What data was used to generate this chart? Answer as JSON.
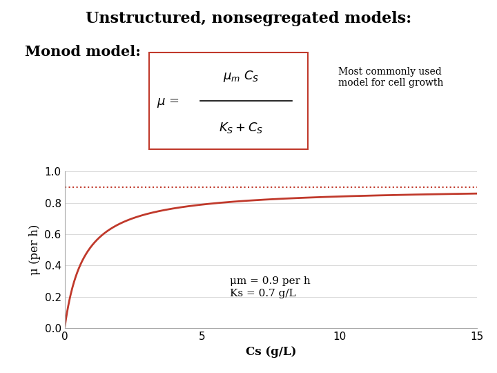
{
  "title": "Unstructured, nonsegregated models:",
  "subtitle": "Monod model:",
  "mu_m": 0.9,
  "Ks": 0.7,
  "cs_max": 15,
  "xlabel": "Cs (g/L)",
  "ylabel": "μ (per h)",
  "yticks": [
    0,
    0.2,
    0.4,
    0.6,
    0.8,
    1
  ],
  "xticks": [
    0,
    5,
    10,
    15
  ],
  "curve_color": "#c0392b",
  "dashed_color": "#c0392b",
  "box_color": "#c0392b",
  "annotation_line1": "μm = 0.9 per h",
  "annotation_line2": "Ks = 0.7 g/L",
  "background_color": "#ffffff",
  "bar_color_left": "#8b1a2a",
  "bar_color_right": "#1a3a5c",
  "title_fontsize": 16,
  "subtitle_fontsize": 15,
  "axis_label_fontsize": 12
}
